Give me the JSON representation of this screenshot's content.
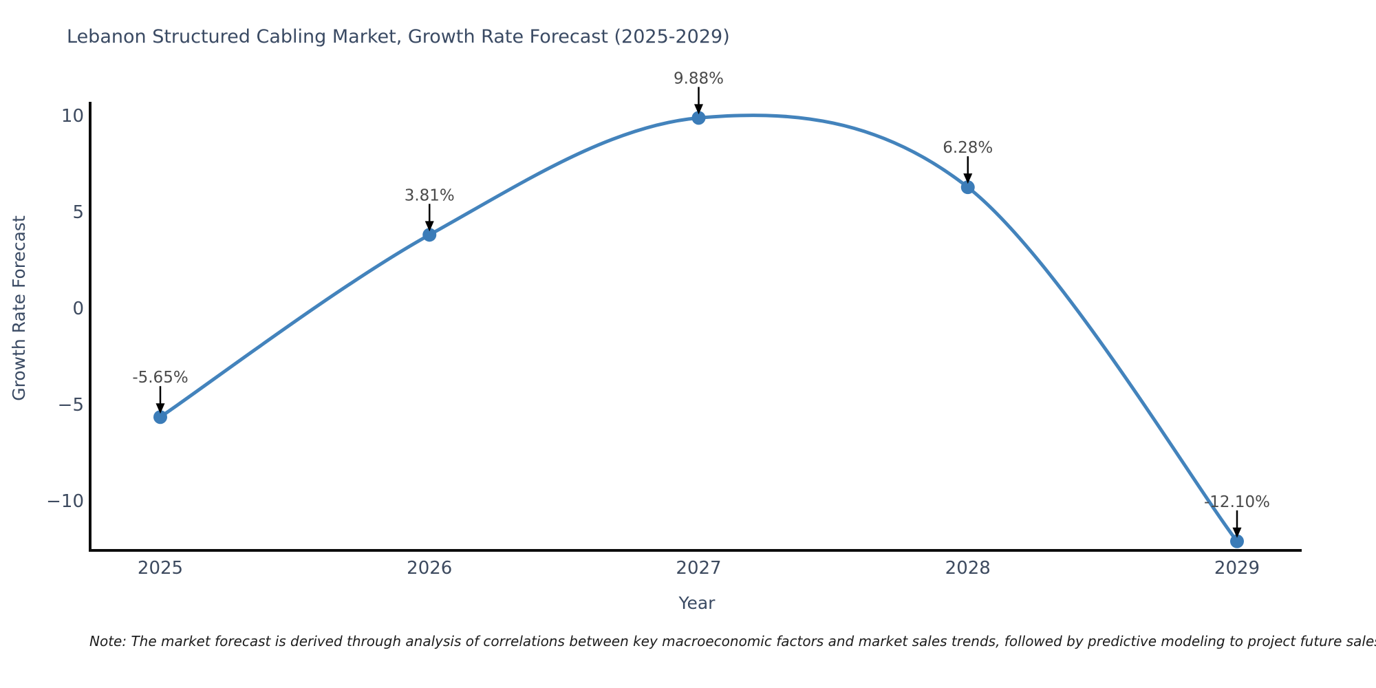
{
  "chart_data": {
    "type": "line",
    "title": "Lebanon Structured Cabling Market, Growth Rate Forecast (2025-2029)",
    "xlabel": "Year",
    "ylabel": "Growth Rate Forecast",
    "x": [
      2025,
      2026,
      2027,
      2028,
      2029
    ],
    "values": [
      -5.65,
      3.81,
      9.88,
      6.28,
      -12.1
    ],
    "point_labels": [
      "-5.65%",
      "3.81%",
      "9.88%",
      "6.28%",
      "-12.10%"
    ],
    "x_tick_labels": [
      "2025",
      "2026",
      "2027",
      "2028",
      "2029"
    ],
    "y_ticks": [
      10,
      5,
      0,
      -5,
      -10
    ],
    "y_tick_labels": [
      "10",
      "5",
      "0",
      "−5",
      "−10"
    ],
    "ylim": [
      -12.6,
      10.6
    ],
    "grid": false,
    "legend": null,
    "line_color": "#4383bc",
    "marker_color": "#3b7cb8",
    "axis_color": "#0d0d0d",
    "annotation_arrow_color": "#000000"
  },
  "note": "Note: The market forecast is derived through analysis of correlations between key macroeconomic factors and market sales trends, followed by predictive modeling to project future sales."
}
